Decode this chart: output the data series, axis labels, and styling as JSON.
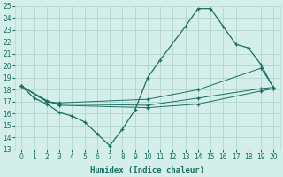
{
  "xlabel": "Humidex (Indice chaleur)",
  "bg_color": "#d4eeea",
  "grid_color": "#b8d8d4",
  "line_color": "#1a6e62",
  "xlim": [
    -0.5,
    20.5
  ],
  "ylim": [
    13,
    25
  ],
  "xticks": [
    0,
    1,
    2,
    3,
    4,
    5,
    6,
    7,
    8,
    9,
    10,
    11,
    12,
    13,
    14,
    15,
    16,
    17,
    18,
    19,
    20
  ],
  "yticks": [
    13,
    14,
    15,
    16,
    17,
    18,
    19,
    20,
    21,
    22,
    23,
    24,
    25
  ],
  "lines": [
    {
      "x": [
        0,
        1,
        2,
        3,
        4,
        5,
        6,
        7,
        8,
        9,
        10,
        11,
        13,
        14,
        15,
        16,
        17,
        18,
        19,
        20
      ],
      "y": [
        18.3,
        17.3,
        16.8,
        16.1,
        15.8,
        15.3,
        14.3,
        13.3,
        14.7,
        16.3,
        19.0,
        20.5,
        23.3,
        24.8,
        24.8,
        23.3,
        21.8,
        21.5,
        20.1,
        18.1
      ]
    },
    {
      "x": [
        0,
        2,
        3,
        10,
        14,
        19,
        20
      ],
      "y": [
        18.3,
        17.0,
        16.9,
        17.2,
        18.0,
        19.8,
        18.2
      ]
    },
    {
      "x": [
        0,
        2,
        3,
        10,
        14,
        19,
        20
      ],
      "y": [
        18.3,
        17.0,
        16.8,
        16.7,
        17.3,
        18.1,
        18.2
      ]
    },
    {
      "x": [
        0,
        2,
        3,
        10,
        14,
        19,
        20
      ],
      "y": [
        18.3,
        17.1,
        16.7,
        16.5,
        16.8,
        17.9,
        18.1
      ]
    }
  ]
}
